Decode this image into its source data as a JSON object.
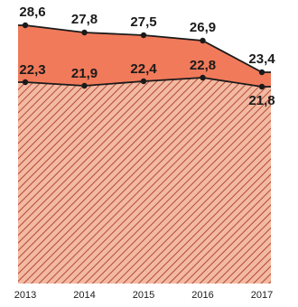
{
  "chart_data": {
    "type": "area",
    "x": [
      "2013",
      "2014",
      "2015",
      "2016",
      "2017"
    ],
    "series": [
      {
        "values": [
          28.6,
          27.8,
          27.5,
          26.9,
          23.4
        ],
        "labels": [
          "28,6",
          "27,8",
          "27,5",
          "26,9",
          "23,4"
        ]
      },
      {
        "values": [
          22.3,
          21.9,
          22.4,
          22.8,
          21.8
        ],
        "labels": [
          "22,3",
          "21,9",
          "22,4",
          "22,8",
          "21,8"
        ]
      }
    ],
    "ylim": [
      0,
      30
    ],
    "colors": {
      "upper_band": "#f07a5a",
      "lower_area": "#f3b9a2",
      "hatch": "#b04a33",
      "line": "#1a1a1a"
    },
    "grid": false,
    "legend": "none"
  }
}
